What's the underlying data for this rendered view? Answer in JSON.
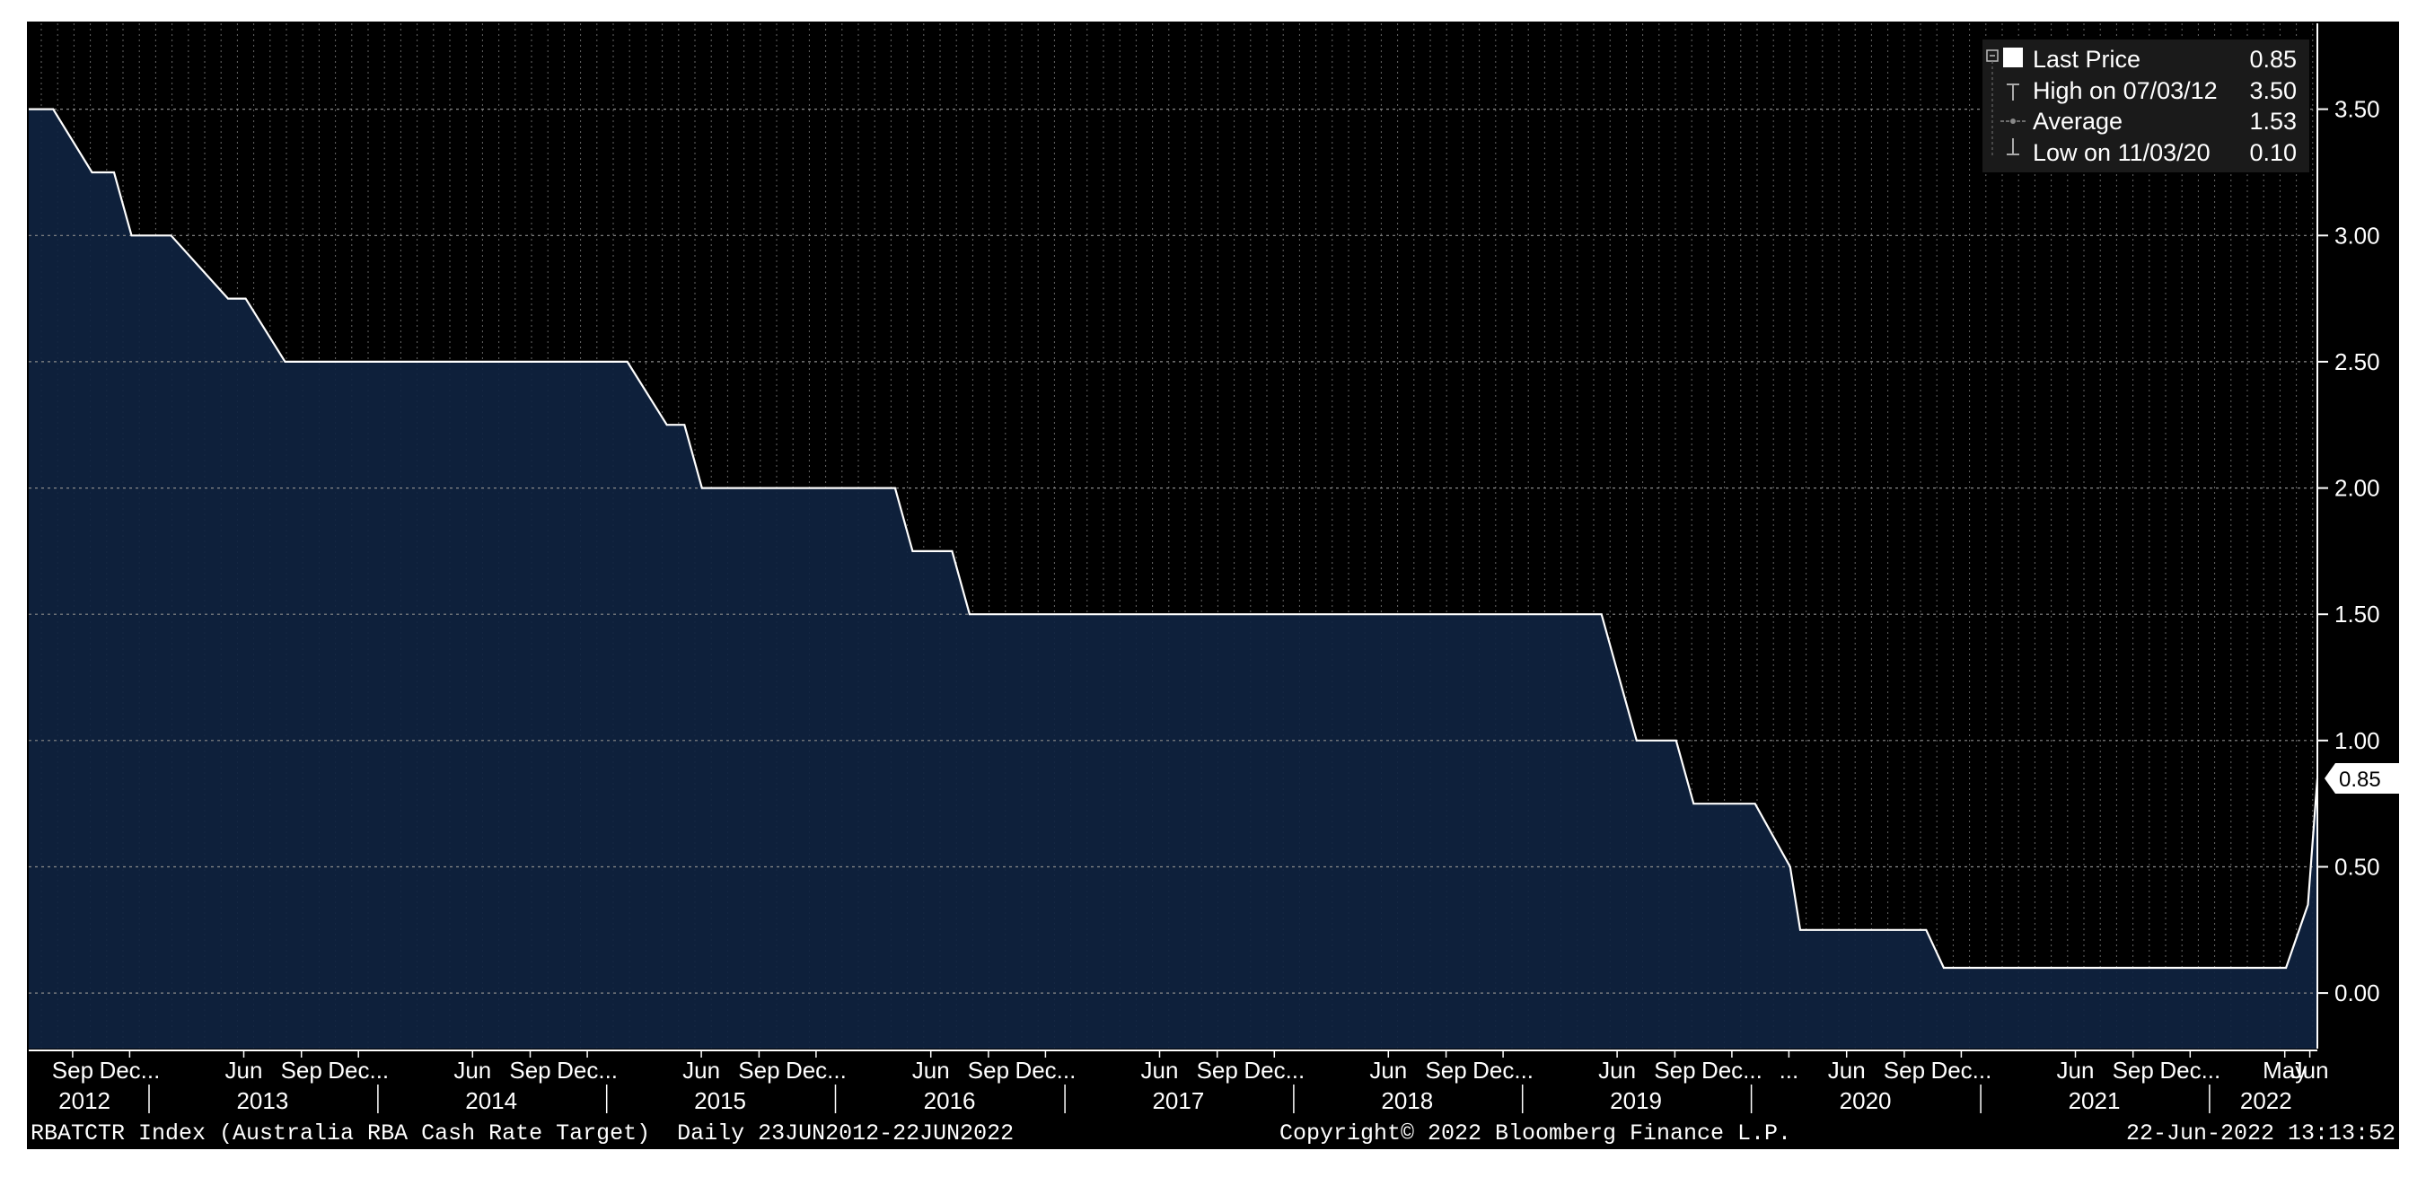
{
  "chart_data": {
    "type": "area",
    "title": "",
    "xlabel": "",
    "ylabel": "",
    "ylim": [
      -0.22,
      3.84
    ],
    "xlim": [
      "2012-06-23",
      "2022-06-22"
    ],
    "y_ticks": [
      0.0,
      0.5,
      1.0,
      1.5,
      2.0,
      2.5,
      3.0,
      3.5
    ],
    "y_tick_labels": [
      "0.00",
      "0.50",
      "1.00",
      "1.50",
      "2.00",
      "2.50",
      "3.00",
      "3.50"
    ],
    "grid": true,
    "legend_position": "top-right",
    "background_color": "#000000",
    "fill_color": "#0f2340",
    "line_color": "#ffffff",
    "grid_color": "#8a8a8a",
    "series": [
      {
        "x": [
          "2012-06-23",
          "2012-08-01",
          "2012-10-02",
          "2012-11-06",
          "2012-12-04",
          "2013-02-05",
          "2013-05-07",
          "2013-06-04",
          "2013-08-06",
          "2014-01-01",
          "2014-12-02",
          "2015-02-03",
          "2015-04-07",
          "2015-05-05",
          "2015-06-02",
          "2016-04-05",
          "2016-05-03",
          "2016-07-05",
          "2016-08-02",
          "2019-05-07",
          "2019-06-04",
          "2019-07-02",
          "2019-09-03",
          "2019-10-01",
          "2020-01-07",
          "2020-03-03",
          "2020-03-19",
          "2020-10-06",
          "2020-11-03",
          "2022-05-03",
          "2022-06-07",
          "2022-06-22"
        ],
        "values": [
          3.5,
          3.5,
          3.25,
          3.25,
          3.0,
          3.0,
          2.75,
          2.75,
          2.5,
          2.5,
          2.5,
          2.5,
          2.25,
          2.25,
          2.0,
          2.0,
          1.75,
          1.75,
          1.5,
          1.5,
          1.25,
          1.0,
          1.0,
          0.75,
          0.75,
          0.5,
          0.25,
          0.25,
          0.1,
          0.1,
          0.35,
          0.85
        ]
      }
    ],
    "x_axis": {
      "months": [
        {
          "label": "Sep",
          "date": "2012-09-01"
        },
        {
          "label": "Dec...",
          "date": "2012-12-01"
        },
        {
          "label": "Jun",
          "date": "2013-06-01"
        },
        {
          "label": "Sep",
          "date": "2013-09-01"
        },
        {
          "label": "Dec...",
          "date": "2013-12-01"
        },
        {
          "label": "Jun",
          "date": "2014-06-01"
        },
        {
          "label": "Sep",
          "date": "2014-09-01"
        },
        {
          "label": "Dec...",
          "date": "2014-12-01"
        },
        {
          "label": "Jun",
          "date": "2015-06-01"
        },
        {
          "label": "Sep",
          "date": "2015-09-01"
        },
        {
          "label": "Dec...",
          "date": "2015-12-01"
        },
        {
          "label": "Jun",
          "date": "2016-06-01"
        },
        {
          "label": "Sep",
          "date": "2016-09-01"
        },
        {
          "label": "Dec...",
          "date": "2016-12-01"
        },
        {
          "label": "Jun",
          "date": "2017-06-01"
        },
        {
          "label": "Sep",
          "date": "2017-09-01"
        },
        {
          "label": "Dec...",
          "date": "2017-12-01"
        },
        {
          "label": "Jun",
          "date": "2018-06-01"
        },
        {
          "label": "Sep",
          "date": "2018-09-01"
        },
        {
          "label": "Dec...",
          "date": "2018-12-01"
        },
        {
          "label": "Jun",
          "date": "2019-06-01"
        },
        {
          "label": "Sep",
          "date": "2019-09-01"
        },
        {
          "label": "Dec...",
          "date": "2019-12-01"
        },
        {
          "label": "...",
          "date": "2020-03-01"
        },
        {
          "label": "Jun",
          "date": "2020-06-01"
        },
        {
          "label": "Sep",
          "date": "2020-09-01"
        },
        {
          "label": "Dec...",
          "date": "2020-12-01"
        },
        {
          "label": "Jun",
          "date": "2021-06-01"
        },
        {
          "label": "Sep",
          "date": "2021-09-01"
        },
        {
          "label": "Dec...",
          "date": "2021-12-01"
        },
        {
          "label": "May",
          "date": "2022-05-01"
        },
        {
          "label": "Jun",
          "date": "2022-06-10"
        }
      ],
      "years": [
        {
          "label": "2012",
          "date": "2012-09-20"
        },
        {
          "label": "2013",
          "date": "2013-07-01"
        },
        {
          "label": "2014",
          "date": "2014-07-01"
        },
        {
          "label": "2015",
          "date": "2015-07-01"
        },
        {
          "label": "2016",
          "date": "2016-07-01"
        },
        {
          "label": "2017",
          "date": "2017-07-01"
        },
        {
          "label": "2018",
          "date": "2018-07-01"
        },
        {
          "label": "2019",
          "date": "2019-07-01"
        },
        {
          "label": "2020",
          "date": "2020-07-01"
        },
        {
          "label": "2021",
          "date": "2021-07-01"
        },
        {
          "label": "2022",
          "date": "2022-04-01"
        }
      ],
      "year_dividers": [
        "2013-01-01",
        "2014-01-01",
        "2015-01-01",
        "2016-01-01",
        "2017-01-01",
        "2018-01-01",
        "2019-01-01",
        "2020-01-01",
        "2021-01-01",
        "2022-01-01"
      ]
    },
    "last_price_tag": "0.85",
    "legend": [
      {
        "label": "Last Price",
        "value": "0.85",
        "icon": "white-square-icon"
      },
      {
        "label": "High on 07/03/12",
        "value": "3.50",
        "icon": "high-marker-icon"
      },
      {
        "label": "Average",
        "value": "1.53",
        "icon": "average-marker-icon"
      },
      {
        "label": "Low on 11/03/20",
        "value": "0.10",
        "icon": "low-marker-icon"
      }
    ]
  },
  "footer": {
    "left": "RBATCTR Index (Australia RBA Cash Rate Target)  Daily 23JUN2012-22JUN2022",
    "center": "Copyright© 2022 Bloomberg Finance L.P.",
    "right": "22-Jun-2022 13:13:52"
  }
}
